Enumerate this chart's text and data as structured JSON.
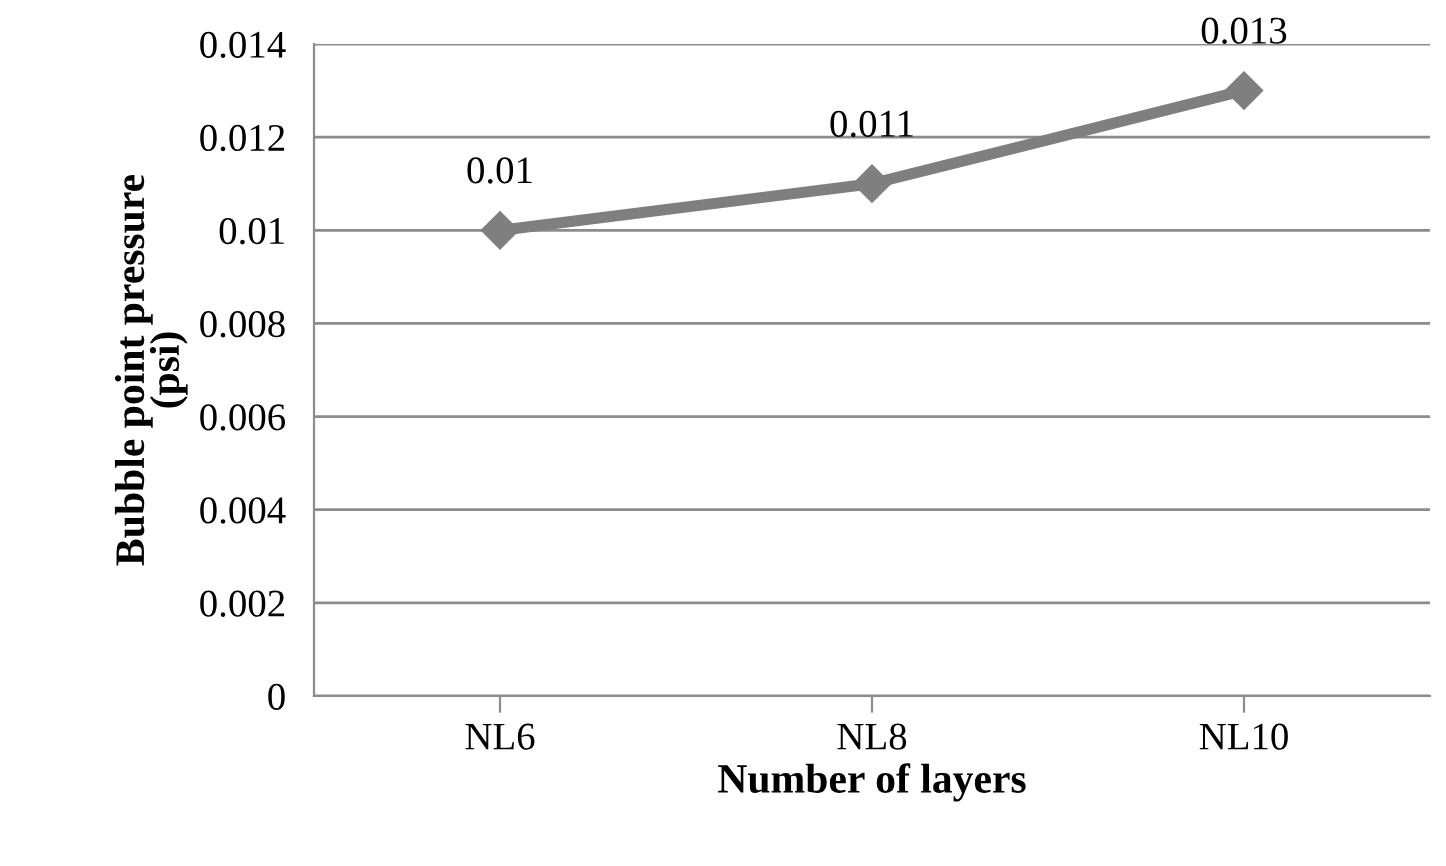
{
  "chart_data": {
    "type": "line",
    "xlabel": "Number of layers",
    "ylabel": "Bubble point pressure\n(psi)",
    "categories": [
      "NL6",
      "NL8",
      "NL10"
    ],
    "series": [
      {
        "color": "#7f7f7f",
        "values": [
          0.01,
          0.011,
          0.013
        ]
      }
    ],
    "ylim": [
      0,
      0.014
    ],
    "yticks": [
      0,
      0.002,
      0.004,
      0.006,
      0.008,
      0.01,
      0.012,
      0.014
    ],
    "grid": "y",
    "marker": "diamond",
    "line_style": "solid",
    "data_labels": true
  }
}
